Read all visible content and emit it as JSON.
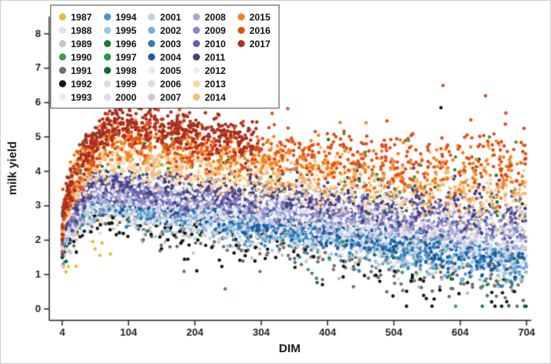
{
  "figure": {
    "xlabel": "DIM",
    "ylabel": "milk yield"
  },
  "chart_data": {
    "type": "scatter",
    "title": "",
    "xlabel": "DIM",
    "ylabel": "milk yield",
    "x_ticks": [
      4,
      104,
      204,
      304,
      404,
      504,
      604,
      704
    ],
    "y_ticks": [
      0,
      1,
      2,
      3,
      4,
      5,
      6,
      7,
      8
    ],
    "xlim": [
      4,
      730
    ],
    "ylim": [
      0,
      8.4
    ],
    "grid": false,
    "legend_position": "top-left",
    "legend_rows": 7,
    "point_radius": 2.2,
    "axis_color": "#222222",
    "description": "Lactation curves: milk yield vs days in milk (DIM) per year 1987-2017; each series summarized by start value y0, peak value ypeak at dpeak, end value yend at dmax, with scatter noise.",
    "series": [
      {
        "name": "1987",
        "color": "#e3bf2f",
        "n": 12,
        "dmin": 4,
        "dmax": 80,
        "dpeak": 40,
        "y0": 1.5,
        "ypeak": 2.3,
        "yend": 2.1,
        "noise": 0.35
      },
      {
        "name": "1988",
        "color": "#e3e3e3",
        "n": 320,
        "dmin": 4,
        "dmax": 704,
        "dpeak": 60,
        "y0": 1.6,
        "ypeak": 3.05,
        "yend": 1.6,
        "noise": 0.22
      },
      {
        "name": "1989",
        "color": "#c6c6c6",
        "n": 320,
        "dmin": 4,
        "dmax": 704,
        "dpeak": 60,
        "y0": 1.5,
        "ypeak": 2.9,
        "yend": 1.0,
        "noise": 0.24
      },
      {
        "name": "1990",
        "color": "#3e9b47",
        "n": 70,
        "dmin": 4,
        "dmax": 704,
        "dpeak": 55,
        "y0": 2.0,
        "ypeak": 4.3,
        "yend": 2.0,
        "noise": 0.75
      },
      {
        "name": "1991",
        "color": "#6f6f6f",
        "n": 260,
        "dmin": 4,
        "dmax": 704,
        "dpeak": 60,
        "y0": 1.4,
        "ypeak": 2.8,
        "yend": 0.6,
        "noise": 0.26
      },
      {
        "name": "1992",
        "color": "#141414",
        "n": 150,
        "dmin": 4,
        "dmax": 704,
        "dpeak": 60,
        "y0": 1.3,
        "ypeak": 2.7,
        "yend": 0.4,
        "noise": 0.3
      },
      {
        "name": "1993",
        "color": "#ececec",
        "n": 280,
        "dmin": 4,
        "dmax": 704,
        "dpeak": 60,
        "y0": 1.6,
        "ypeak": 3.0,
        "yend": 1.4,
        "noise": 0.22
      },
      {
        "name": "1994",
        "color": "#4e93c8",
        "n": 340,
        "dmin": 4,
        "dmax": 704,
        "dpeak": 60,
        "y0": 1.8,
        "ypeak": 3.2,
        "yend": 1.3,
        "noise": 0.22
      },
      {
        "name": "1995",
        "color": "#9cc6e2",
        "n": 340,
        "dmin": 4,
        "dmax": 704,
        "dpeak": 60,
        "y0": 1.8,
        "ypeak": 3.15,
        "yend": 1.2,
        "noise": 0.22
      },
      {
        "name": "1996",
        "color": "#1d7a35",
        "n": 55,
        "dmin": 4,
        "dmax": 704,
        "dpeak": 55,
        "y0": 2.0,
        "ypeak": 4.1,
        "yend": 2.1,
        "noise": 0.7
      },
      {
        "name": "1997",
        "color": "#2b9048",
        "n": 55,
        "dmin": 4,
        "dmax": 704,
        "dpeak": 55,
        "y0": 2.0,
        "ypeak": 4.35,
        "yend": 2.3,
        "noise": 0.7
      },
      {
        "name": "1998",
        "color": "#0e6b2d",
        "n": 55,
        "dmin": 4,
        "dmax": 704,
        "dpeak": 55,
        "y0": 2.1,
        "ypeak": 4.2,
        "yend": 2.5,
        "noise": 0.7
      },
      {
        "name": "1999",
        "color": "#dedede",
        "n": 280,
        "dmin": 4,
        "dmax": 704,
        "dpeak": 60,
        "y0": 1.7,
        "ypeak": 3.1,
        "yend": 1.7,
        "noise": 0.22
      },
      {
        "name": "2000",
        "color": "#d9d9ec",
        "n": 280,
        "dmin": 4,
        "dmax": 704,
        "dpeak": 60,
        "y0": 1.7,
        "ypeak": 3.15,
        "yend": 1.8,
        "noise": 0.22
      },
      {
        "name": "2001",
        "color": "#c3cfe8",
        "n": 340,
        "dmin": 4,
        "dmax": 704,
        "dpeak": 60,
        "y0": 1.8,
        "ypeak": 3.2,
        "yend": 1.7,
        "noise": 0.22
      },
      {
        "name": "2002",
        "color": "#6db1da",
        "n": 400,
        "dmin": 4,
        "dmax": 704,
        "dpeak": 60,
        "y0": 1.9,
        "ypeak": 3.3,
        "yend": 1.35,
        "noise": 0.22
      },
      {
        "name": "2003",
        "color": "#2e7ebc",
        "n": 420,
        "dmin": 4,
        "dmax": 704,
        "dpeak": 60,
        "y0": 1.9,
        "ypeak": 3.35,
        "yend": 1.3,
        "noise": 0.22
      },
      {
        "name": "2004",
        "color": "#1c5a9b",
        "n": 420,
        "dmin": 4,
        "dmax": 704,
        "dpeak": 60,
        "y0": 1.9,
        "ypeak": 3.4,
        "yend": 1.45,
        "noise": 0.22
      },
      {
        "name": "2005",
        "color": "#eae9f2",
        "n": 280,
        "dmin": 4,
        "dmax": 704,
        "dpeak": 60,
        "y0": 1.8,
        "ypeak": 3.3,
        "yend": 1.9,
        "noise": 0.22
      },
      {
        "name": "2006",
        "color": "#dddbec",
        "n": 300,
        "dmin": 4,
        "dmax": 704,
        "dpeak": 60,
        "y0": 1.8,
        "ypeak": 3.35,
        "yend": 2.0,
        "noise": 0.22
      },
      {
        "name": "2007",
        "color": "#c7c5e1",
        "n": 340,
        "dmin": 4,
        "dmax": 704,
        "dpeak": 60,
        "y0": 1.9,
        "ypeak": 3.4,
        "yend": 2.1,
        "noise": 0.22
      },
      {
        "name": "2008",
        "color": "#a9a6d1",
        "n": 400,
        "dmin": 4,
        "dmax": 704,
        "dpeak": 60,
        "y0": 1.9,
        "ypeak": 3.5,
        "yend": 2.2,
        "noise": 0.22
      },
      {
        "name": "2009",
        "color": "#8b86c3",
        "n": 420,
        "dmin": 4,
        "dmax": 704,
        "dpeak": 60,
        "y0": 2.0,
        "ypeak": 3.6,
        "yend": 2.35,
        "noise": 0.22
      },
      {
        "name": "2010",
        "color": "#6a5ea8",
        "n": 420,
        "dmin": 4,
        "dmax": 704,
        "dpeak": 60,
        "y0": 2.0,
        "ypeak": 3.65,
        "yend": 2.55,
        "noise": 0.22
      },
      {
        "name": "2011",
        "color": "#454180",
        "n": 420,
        "dmin": 4,
        "dmax": 704,
        "dpeak": 60,
        "y0": 2.0,
        "ypeak": 3.7,
        "yend": 2.9,
        "noise": 0.25
      },
      {
        "name": "2012",
        "color": "#eeedf5",
        "n": 280,
        "dmin": 4,
        "dmax": 704,
        "dpeak": 60,
        "y0": 1.9,
        "ypeak": 3.55,
        "yend": 2.3,
        "noise": 0.25
      },
      {
        "name": "2013",
        "color": "#fbd7a2",
        "n": 460,
        "dmin": 4,
        "dmax": 704,
        "dpeak": 62,
        "y0": 2.0,
        "ypeak": 4.3,
        "yend": 3.0,
        "noise": 0.26
      },
      {
        "name": "2014",
        "color": "#f6bb76",
        "n": 460,
        "dmin": 4,
        "dmax": 704,
        "dpeak": 62,
        "y0": 2.0,
        "ypeak": 4.5,
        "yend": 3.3,
        "noise": 0.26
      },
      {
        "name": "2015",
        "color": "#f2821f",
        "n": 520,
        "dmin": 4,
        "dmax": 704,
        "dpeak": 65,
        "y0": 2.1,
        "ypeak": 4.8,
        "yend": 3.75,
        "noise": 0.28
      },
      {
        "name": "2016",
        "color": "#e14d1b",
        "n": 560,
        "dmin": 4,
        "dmax": 704,
        "dpeak": 68,
        "y0": 2.1,
        "ypeak": 5.1,
        "yend": 4.15,
        "noise": 0.32
      },
      {
        "name": "2017",
        "color": "#a7301f",
        "n": 440,
        "dmin": 4,
        "dmax": 300,
        "dpeak": 80,
        "y0": 2.1,
        "ypeak": 5.5,
        "yend": 4.9,
        "noise": 0.24
      }
    ],
    "outliers": [
      {
        "x": 300,
        "y": 5.9,
        "year": "2016"
      },
      {
        "x": 578,
        "y": 6.5,
        "year": "2016"
      },
      {
        "x": 642,
        "y": 6.2,
        "year": "2016"
      },
      {
        "x": 620,
        "y": 5.5,
        "year": "2016"
      },
      {
        "x": 700,
        "y": 5.25,
        "year": "2016"
      },
      {
        "x": 575,
        "y": 5.85,
        "year": "1992"
      },
      {
        "x": 460,
        "y": 4.55,
        "year": "1990"
      },
      {
        "x": 526,
        "y": 4.9,
        "year": "1990"
      },
      {
        "x": 648,
        "y": 5.0,
        "year": "1990"
      },
      {
        "x": 688,
        "y": 4.85,
        "year": "1990"
      },
      {
        "x": 90,
        "y": 5.8,
        "year": "2017"
      }
    ]
  }
}
